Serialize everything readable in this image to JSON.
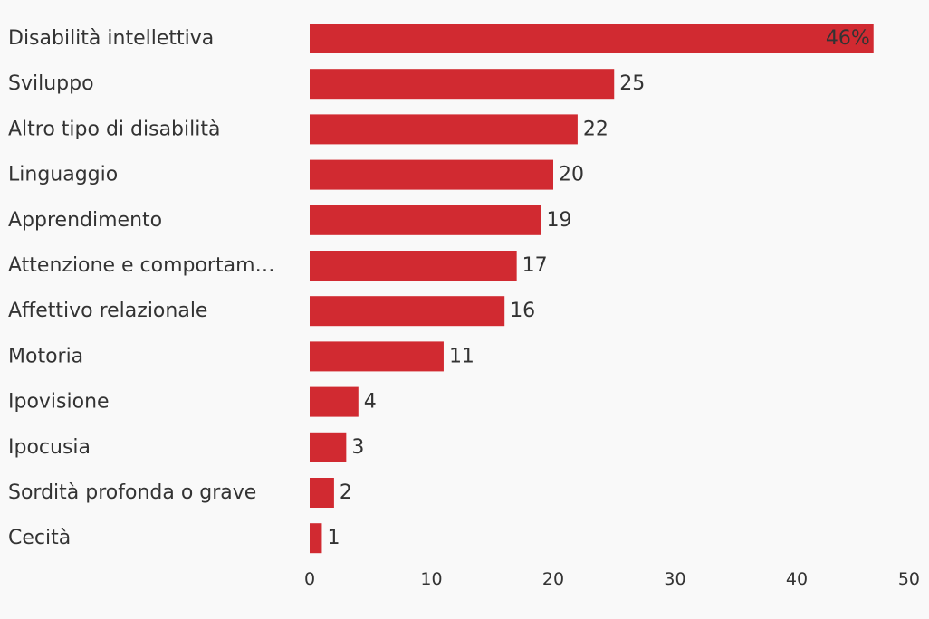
{
  "chart_data": {
    "type": "bar",
    "orientation": "horizontal",
    "categories": [
      "Disabilità intellettiva",
      "Sviluppo",
      "Altro tipo di disabilità",
      "Linguaggio",
      "Apprendimento",
      "Attenzione e comportam…",
      "Affettivo relazionale",
      "Motoria",
      "Ipovisione",
      "Ipocusia",
      "Sordità profonda o grave",
      "Cecità"
    ],
    "values": [
      46.3,
      25,
      22,
      20,
      19,
      17,
      16,
      11,
      4,
      3,
      2,
      1
    ],
    "value_labels": [
      "46%",
      "25",
      "22",
      "20",
      "19",
      "17",
      "16",
      "11",
      "4",
      "3",
      "2",
      "1"
    ],
    "xlim": [
      0,
      50
    ],
    "x_ticks": [
      0,
      10,
      20,
      30,
      40,
      50
    ],
    "grid": false,
    "legend": "none"
  },
  "colors": {
    "bar": "#d12a31",
    "text": "#333333",
    "background": "#f9f9f9"
  }
}
